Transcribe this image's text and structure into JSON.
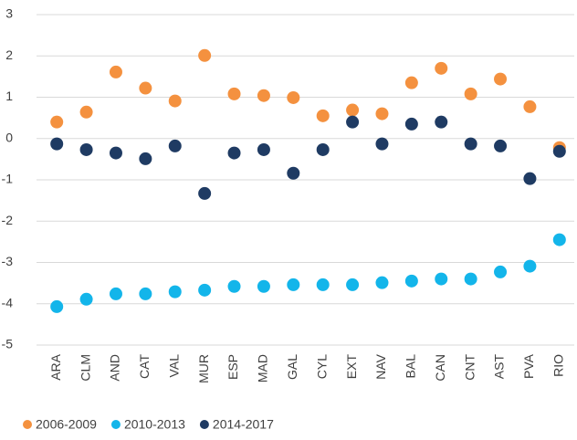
{
  "chart_data": {
    "type": "dot",
    "categories": [
      "ARA",
      "CLM",
      "AND",
      "CAT",
      "VAL",
      "MUR",
      "ESP",
      "MAD",
      "GAL",
      "CYL",
      "EXT",
      "NAV",
      "BAL",
      "CAN",
      "CNT",
      "AST",
      "PVA",
      "RIO"
    ],
    "series": [
      {
        "name": "2006-2009",
        "color": "#f4913f",
        "values": [
          0.4,
          0.64,
          1.61,
          1.22,
          0.91,
          2.01,
          1.08,
          1.04,
          0.99,
          0.55,
          0.69,
          0.6,
          1.35,
          1.7,
          1.08,
          1.44,
          0.77,
          -0.22
        ]
      },
      {
        "name": "2010-2013",
        "color": "#13b5ea",
        "values": [
          -4.07,
          -3.89,
          -3.76,
          -3.76,
          -3.71,
          -3.67,
          -3.58,
          -3.58,
          -3.54,
          -3.54,
          -3.54,
          -3.49,
          -3.45,
          -3.4,
          -3.4,
          -3.23,
          -3.09,
          -2.45
        ]
      },
      {
        "name": "2014-2017",
        "color": "#1f3b63",
        "values": [
          -0.13,
          -0.27,
          -0.35,
          -0.49,
          -0.18,
          -1.33,
          -0.35,
          -0.27,
          -0.84,
          -0.27,
          0.4,
          -0.13,
          0.35,
          0.4,
          -0.13,
          -0.18,
          -0.97,
          -0.31
        ]
      }
    ],
    "ylim": [
      -5,
      3
    ],
    "yticks": [
      -5,
      -4,
      -3,
      -2,
      -1,
      0,
      1,
      2,
      3
    ],
    "grid": true,
    "legend": "bottom"
  }
}
